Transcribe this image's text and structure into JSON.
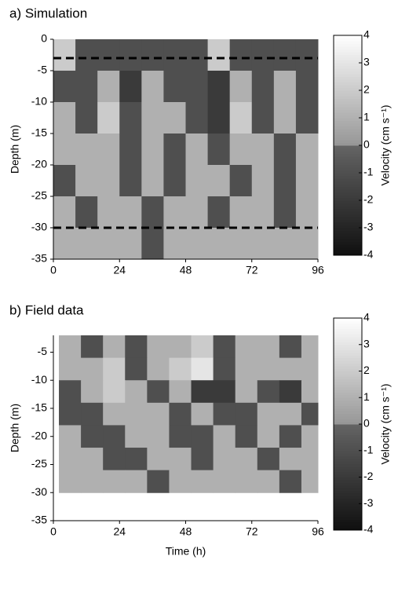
{
  "chart_data": [
    {
      "type": "heatmap",
      "title": "a) Simulation",
      "ylabel": "Depth (m)",
      "x": [
        0,
        8,
        16,
        24,
        32,
        40,
        48,
        56,
        64,
        72,
        80,
        88,
        96
      ],
      "y": [
        0,
        -5,
        -10,
        -15,
        -20,
        -25,
        -30,
        -35
      ],
      "z": [
        [
          2,
          -1,
          -1,
          -1,
          -1,
          -1,
          -1,
          2,
          -1,
          -1,
          -1,
          -1
        ],
        [
          -1,
          -1,
          1,
          -2,
          1,
          -1,
          -1,
          -2,
          1,
          -1,
          1,
          -1
        ],
        [
          1,
          -1,
          2,
          -1,
          1,
          1,
          -1,
          -2,
          2,
          -1,
          1,
          -1
        ],
        [
          1,
          1,
          1,
          -1,
          1,
          -1,
          1,
          -1,
          1,
          1,
          -1,
          1
        ],
        [
          -1,
          1,
          1,
          -1,
          1,
          -1,
          1,
          1,
          -1,
          1,
          -1,
          1
        ],
        [
          1,
          -1,
          1,
          1,
          -1,
          1,
          1,
          -1,
          1,
          1,
          -1,
          1
        ],
        [
          1,
          1,
          1,
          1,
          -1,
          1,
          1,
          1,
          1,
          1,
          1,
          1
        ]
      ],
      "xlim": [
        0,
        96
      ],
      "xticks": [
        0,
        24,
        48,
        72,
        96
      ],
      "ylim": [
        -35,
        0
      ],
      "yticks": [
        -35,
        -30,
        -25,
        -20,
        -15,
        -10,
        -5,
        0
      ],
      "hlines": [
        -3,
        -30
      ],
      "clim": [
        -4,
        4
      ],
      "cticks": [
        -4,
        -3,
        -2,
        -1,
        0,
        1,
        2,
        3,
        4
      ],
      "colorbar_label": "Velocity (cm s⁻¹)"
    },
    {
      "type": "heatmap",
      "title": "b) Field data",
      "ylabel": "Depth (m)",
      "xlabel": "Time (h)",
      "x": [
        2,
        10,
        18,
        26,
        34,
        42,
        50,
        58,
        66,
        74,
        82,
        90,
        96
      ],
      "y": [
        -2,
        -6,
        -10,
        -14,
        -18,
        -22,
        -26,
        -30
      ],
      "z": [
        [
          1,
          -1,
          1,
          -1,
          1,
          1,
          2,
          -1,
          1,
          1,
          -1,
          1
        ],
        [
          1,
          1,
          2,
          -1,
          1,
          2,
          3,
          -1,
          1,
          1,
          1,
          1
        ],
        [
          -1,
          1,
          2,
          1,
          -1,
          1,
          -2,
          -2,
          1,
          -1,
          -2,
          1
        ],
        [
          -1,
          -1,
          1,
          1,
          1,
          -1,
          1,
          -1,
          -1,
          1,
          1,
          -1
        ],
        [
          1,
          -1,
          -1,
          1,
          1,
          -1,
          -1,
          1,
          -1,
          1,
          -1,
          1
        ],
        [
          1,
          1,
          -1,
          -1,
          1,
          1,
          -1,
          1,
          1,
          -1,
          1,
          1
        ],
        [
          1,
          1,
          1,
          1,
          -1,
          1,
          1,
          1,
          1,
          1,
          -1,
          1
        ]
      ],
      "xlim": [
        0,
        96
      ],
      "xticks": [
        0,
        24,
        48,
        72,
        96
      ],
      "ylim": [
        -35,
        -2
      ],
      "yticks": [
        -35,
        -30,
        -25,
        -20,
        -15,
        -10,
        -5
      ],
      "clim": [
        -4,
        4
      ],
      "cticks": [
        -4,
        -3,
        -2,
        -1,
        0,
        1,
        2,
        3,
        4
      ],
      "colorbar_label": "Velocity (cm s⁻¹)"
    }
  ]
}
